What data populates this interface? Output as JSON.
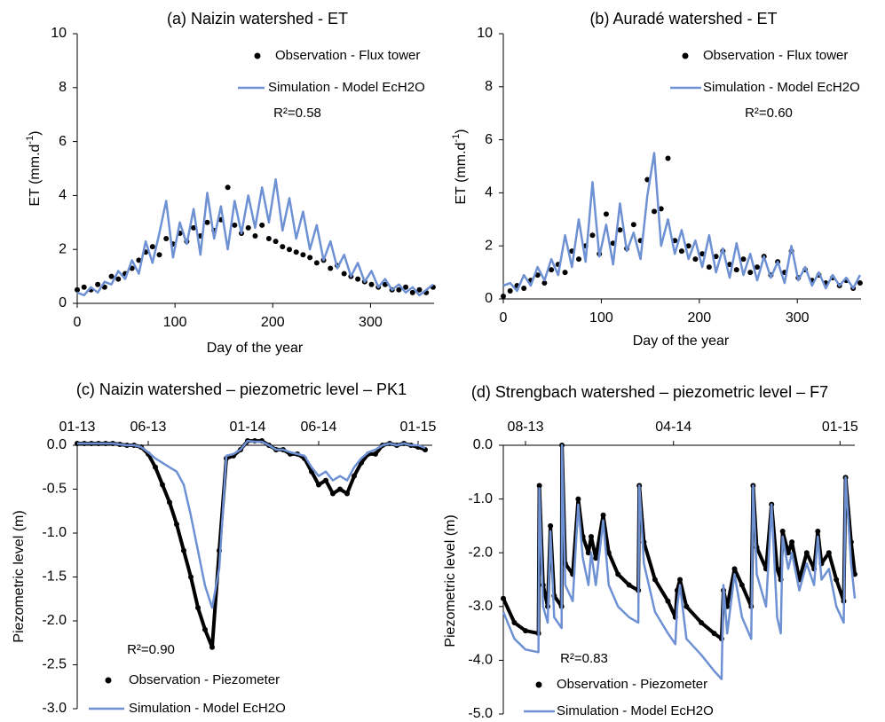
{
  "chart_data": [
    {
      "type": "line",
      "title": "(a) Naizin watershed - ET",
      "ylabel": [
        "ET (mm.d",
        "-1",
        ")"
      ],
      "xlabel": "Day of the year",
      "annotation": "R²=0.58",
      "xlim": [
        0,
        365
      ],
      "xticks": [
        0,
        100,
        200,
        300
      ],
      "ylim": [
        0,
        10
      ],
      "yticks": [
        0,
        2,
        4,
        6,
        8,
        10
      ],
      "xaxis_position": "bottom",
      "x": [
        0,
        7,
        14,
        21,
        28,
        35,
        42,
        49,
        56,
        63,
        70,
        77,
        84,
        91,
        98,
        105,
        112,
        119,
        126,
        133,
        140,
        147,
        154,
        161,
        168,
        175,
        182,
        189,
        196,
        203,
        210,
        217,
        224,
        231,
        238,
        245,
        252,
        259,
        266,
        273,
        280,
        287,
        294,
        301,
        308,
        315,
        322,
        329,
        336,
        343,
        350,
        357,
        364
      ],
      "series": [
        {
          "name": "Observation - Flux tower",
          "color": "#000000",
          "mode": "markers",
          "values": [
            0.5,
            0.6,
            0.5,
            0.7,
            0.6,
            1.0,
            0.9,
            1.1,
            1.3,
            1.6,
            1.9,
            2.1,
            1.8,
            2.4,
            2.2,
            2.6,
            2.3,
            2.8,
            2.5,
            3.0,
            2.7,
            3.1,
            4.3,
            2.9,
            2.6,
            2.8,
            2.5,
            2.9,
            2.4,
            2.3,
            2.1,
            2.0,
            1.9,
            1.8,
            1.7,
            1.5,
            1.6,
            1.3,
            1.4,
            1.1,
            1.0,
            0.9,
            0.8,
            0.7,
            0.6,
            0.7,
            0.5,
            0.5,
            0.6,
            0.4,
            0.5,
            0.4,
            0.6
          ]
        },
        {
          "name": "Simulation - Model EcH2O",
          "color": "#6e91d4",
          "mode": "lines",
          "values": [
            0.4,
            0.3,
            0.6,
            0.4,
            0.8,
            0.7,
            1.2,
            0.9,
            1.6,
            1.1,
            2.3,
            1.5,
            2.6,
            3.8,
            1.7,
            3.0,
            2.2,
            3.5,
            1.8,
            4.1,
            2.4,
            3.6,
            2.0,
            3.8,
            2.6,
            4.0,
            2.8,
            4.3,
            3.0,
            4.6,
            2.7,
            3.9,
            2.4,
            3.4,
            2.0,
            2.9,
            1.6,
            2.3,
            1.3,
            1.8,
            1.0,
            1.5,
            0.8,
            1.2,
            0.6,
            0.9,
            0.5,
            0.7,
            0.4,
            0.6,
            0.3,
            0.5,
            0.7
          ]
        }
      ]
    },
    {
      "type": "line",
      "title": "(b) Auradé watershed - ET",
      "ylabel": [
        "ET (mm.d",
        "-1",
        ")"
      ],
      "xlabel": "Day of the year",
      "annotation": "R²=0.60",
      "xlim": [
        0,
        365
      ],
      "xticks": [
        0,
        100,
        200,
        300
      ],
      "ylim": [
        0,
        10
      ],
      "yticks": [
        0,
        2,
        4,
        6,
        8,
        10
      ],
      "xaxis_position": "bottom",
      "x": [
        0,
        7,
        14,
        21,
        28,
        35,
        42,
        49,
        56,
        63,
        70,
        77,
        84,
        91,
        98,
        105,
        112,
        119,
        126,
        133,
        140,
        147,
        154,
        161,
        168,
        175,
        182,
        189,
        196,
        203,
        210,
        217,
        224,
        231,
        238,
        245,
        252,
        259,
        266,
        273,
        280,
        287,
        294,
        301,
        308,
        315,
        322,
        329,
        336,
        343,
        350,
        357,
        364
      ],
      "series": [
        {
          "name": "Observation - Flux tower",
          "color": "#000000",
          "mode": "markers",
          "values": [
            0.1,
            0.3,
            0.5,
            0.4,
            0.7,
            0.9,
            0.6,
            1.1,
            1.3,
            1.0,
            1.8,
            1.5,
            2.0,
            2.4,
            1.7,
            3.2,
            2.1,
            2.6,
            1.9,
            2.8,
            2.2,
            4.5,
            3.3,
            3.4,
            5.3,
            2.2,
            1.8,
            2.0,
            1.5,
            1.7,
            1.2,
            1.6,
            1.8,
            1.3,
            1.1,
            1.5,
            1.0,
            1.2,
            1.6,
            0.9,
            1.4,
            1.0,
            1.8,
            0.8,
            1.1,
            0.7,
            0.9,
            0.6,
            0.8,
            0.5,
            0.7,
            0.4,
            0.6
          ]
        },
        {
          "name": "Simulation - Model EcH2O",
          "color": "#6e91d4",
          "mode": "lines",
          "values": [
            0.5,
            0.6,
            0.3,
            0.9,
            0.5,
            1.2,
            0.7,
            1.5,
            0.9,
            2.4,
            1.2,
            3.0,
            1.4,
            4.4,
            1.6,
            2.8,
            1.3,
            3.6,
            1.8,
            2.5,
            1.5,
            3.9,
            5.5,
            2.0,
            3.0,
            1.7,
            2.6,
            1.5,
            2.2,
            1.2,
            2.4,
            1.0,
            1.9,
            0.8,
            2.1,
            0.9,
            1.7,
            0.7,
            1.6,
            0.8,
            1.4,
            0.6,
            2.0,
            0.7,
            1.2,
            0.5,
            1.0,
            0.4,
            0.9,
            0.5,
            0.8,
            0.4,
            0.9
          ]
        }
      ]
    },
    {
      "type": "line",
      "title": "(c) Naizin watershed – piezometric level – PK1",
      "ylabel": "Piezometric level  (m)",
      "annotation": "R²=0.90",
      "xlim": [
        0,
        25
      ],
      "xticks": [
        {
          "value": 0,
          "label": "01-13"
        },
        {
          "value": 5,
          "label": "06-13"
        },
        {
          "value": 12,
          "label": "01-14"
        },
        {
          "value": 17,
          "label": "06-14"
        },
        {
          "value": 24,
          "label": "01-15"
        }
      ],
      "ylim": [
        -3,
        0
      ],
      "yticks": [
        {
          "value": 0,
          "label": "0.0"
        },
        -0.5,
        {
          "value": -1,
          "label": "-1.0"
        },
        -1.5,
        {
          "value": -2,
          "label": "-2.0"
        },
        -2.5,
        {
          "value": -3,
          "label": "-3.0"
        }
      ],
      "xaxis_position": "top",
      "x": [
        0,
        0.5,
        1,
        1.5,
        2,
        2.5,
        3,
        3.5,
        4,
        4.5,
        5,
        5.5,
        6,
        6.5,
        7,
        7.5,
        8,
        8.5,
        9,
        9.5,
        10,
        10.5,
        11,
        11.5,
        12,
        12.5,
        13,
        13.5,
        14,
        14.5,
        15,
        15.5,
        16,
        16.5,
        17,
        17.5,
        18,
        18.5,
        19,
        19.5,
        20,
        20.5,
        21,
        21.5,
        22,
        22.5,
        23,
        23.5,
        24,
        24.5
      ],
      "series": [
        {
          "name": "Observation - Piezometer",
          "color": "#000000",
          "mode": "lines+markers",
          "values": [
            0.02,
            0.02,
            0.02,
            0.02,
            0.02,
            0.02,
            0.01,
            0.0,
            0.0,
            -0.02,
            -0.1,
            -0.25,
            -0.45,
            -0.65,
            -0.9,
            -1.2,
            -1.5,
            -1.85,
            -2.1,
            -2.3,
            -1.2,
            -0.15,
            -0.12,
            -0.05,
            0.05,
            0.05,
            0.05,
            0.0,
            -0.05,
            -0.05,
            -0.1,
            -0.1,
            -0.15,
            -0.3,
            -0.45,
            -0.4,
            -0.55,
            -0.5,
            -0.55,
            -0.35,
            -0.2,
            -0.1,
            -0.1,
            0.0,
            0.02,
            0.0,
            0.02,
            0.0,
            -0.02,
            -0.05
          ]
        },
        {
          "name": "Simulation - Model EcH2O",
          "color": "#6e91d4",
          "mode": "lines",
          "values": [
            0.02,
            0.02,
            0.02,
            0.02,
            0.02,
            0.02,
            0.01,
            0.0,
            0.0,
            -0.02,
            -0.08,
            -0.15,
            -0.2,
            -0.25,
            -0.3,
            -0.45,
            -0.8,
            -1.2,
            -1.6,
            -1.85,
            -1.4,
            -0.12,
            -0.1,
            -0.05,
            0.05,
            0.04,
            0.04,
            0.0,
            -0.05,
            -0.05,
            -0.08,
            -0.1,
            -0.12,
            -0.25,
            -0.35,
            -0.3,
            -0.4,
            -0.35,
            -0.4,
            -0.25,
            -0.15,
            -0.08,
            -0.05,
            0.0,
            0.02,
            0.0,
            0.02,
            0.0,
            0.0,
            -0.03
          ]
        }
      ]
    },
    {
      "type": "line",
      "title": "(d) Strengbach watershed – piezometric level – F7",
      "ylabel": "Piezometric level  (m)",
      "annotation": "R²=0.83",
      "xlim": [
        -1.2,
        17.8
      ],
      "xticks": [
        {
          "value": 0,
          "label": "08-13"
        },
        {
          "value": 8,
          "label": "04-14"
        },
        {
          "value": 17,
          "label": "01-15"
        }
      ],
      "ylim": [
        -5,
        0
      ],
      "yticks": [
        {
          "value": 0,
          "label": "0.0"
        },
        {
          "value": -1,
          "label": "-1.0"
        },
        {
          "value": -2,
          "label": "-2.0"
        },
        {
          "value": -3,
          "label": "-3.0"
        },
        {
          "value": -4,
          "label": "-4.0"
        },
        {
          "value": -5,
          "label": "-5.0"
        }
      ],
      "xaxis_position": "top",
      "x": [
        -1.2,
        -0.6,
        0.0,
        0.7,
        0.75,
        0.95,
        1.2,
        1.35,
        1.55,
        1.95,
        1.97,
        2.15,
        2.55,
        2.85,
        3.1,
        3.4,
        3.55,
        3.8,
        4.2,
        4.5,
        5.0,
        5.6,
        6.1,
        6.15,
        6.4,
        7.0,
        7.7,
        8.1,
        8.2,
        8.35,
        8.7,
        9.5,
        10.2,
        10.6,
        10.7,
        10.9,
        11.3,
        11.7,
        12.2,
        12.3,
        12.5,
        13.0,
        13.3,
        13.6,
        13.8,
        13.9,
        14.2,
        14.4,
        14.8,
        15.2,
        15.6,
        15.8,
        16.0,
        16.4,
        16.8,
        17.2,
        17.3,
        17.6,
        17.8
      ],
      "series": [
        {
          "name": "Observation - Piezometer",
          "color": "#000000",
          "mode": "lines+markers",
          "values": [
            -2.85,
            -3.3,
            -3.45,
            -3.5,
            -0.75,
            -2.6,
            -3.0,
            -1.5,
            -2.8,
            -3.0,
            0.0,
            -2.2,
            -2.4,
            -1.0,
            -1.7,
            -2.0,
            -1.7,
            -2.1,
            -1.3,
            -2.0,
            -2.4,
            -2.6,
            -2.7,
            -0.75,
            -1.8,
            -2.5,
            -2.9,
            -3.2,
            -2.7,
            -2.5,
            -3.0,
            -3.3,
            -3.5,
            -3.6,
            -2.7,
            -3.0,
            -2.3,
            -2.6,
            -3.0,
            -0.75,
            -1.9,
            -2.3,
            -1.1,
            -2.3,
            -2.5,
            -1.6,
            -2.0,
            -1.8,
            -2.5,
            -2.0,
            -2.3,
            -1.6,
            -2.2,
            -2.0,
            -2.5,
            -2.9,
            -0.6,
            -1.8,
            -2.4
          ]
        },
        {
          "name": "Simulation - Model EcH2O",
          "color": "#6e91d4",
          "mode": "lines",
          "values": [
            -3.1,
            -3.6,
            -3.8,
            -3.85,
            -0.8,
            -3.0,
            -3.3,
            -1.6,
            -3.2,
            -3.4,
            0.0,
            -2.6,
            -2.9,
            -1.1,
            -2.1,
            -2.6,
            -2.0,
            -2.6,
            -1.4,
            -2.6,
            -3.0,
            -3.2,
            -3.3,
            -0.75,
            -2.2,
            -3.1,
            -3.5,
            -3.7,
            -3.0,
            -2.6,
            -3.6,
            -3.9,
            -4.2,
            -4.35,
            -2.6,
            -3.5,
            -2.4,
            -3.2,
            -3.6,
            -0.75,
            -2.4,
            -3.0,
            -1.1,
            -3.2,
            -3.5,
            -1.7,
            -2.3,
            -2.0,
            -2.7,
            -2.2,
            -2.6,
            -1.7,
            -2.5,
            -2.3,
            -3.0,
            -3.3,
            -0.6,
            -2.2,
            -2.85
          ]
        }
      ]
    }
  ]
}
